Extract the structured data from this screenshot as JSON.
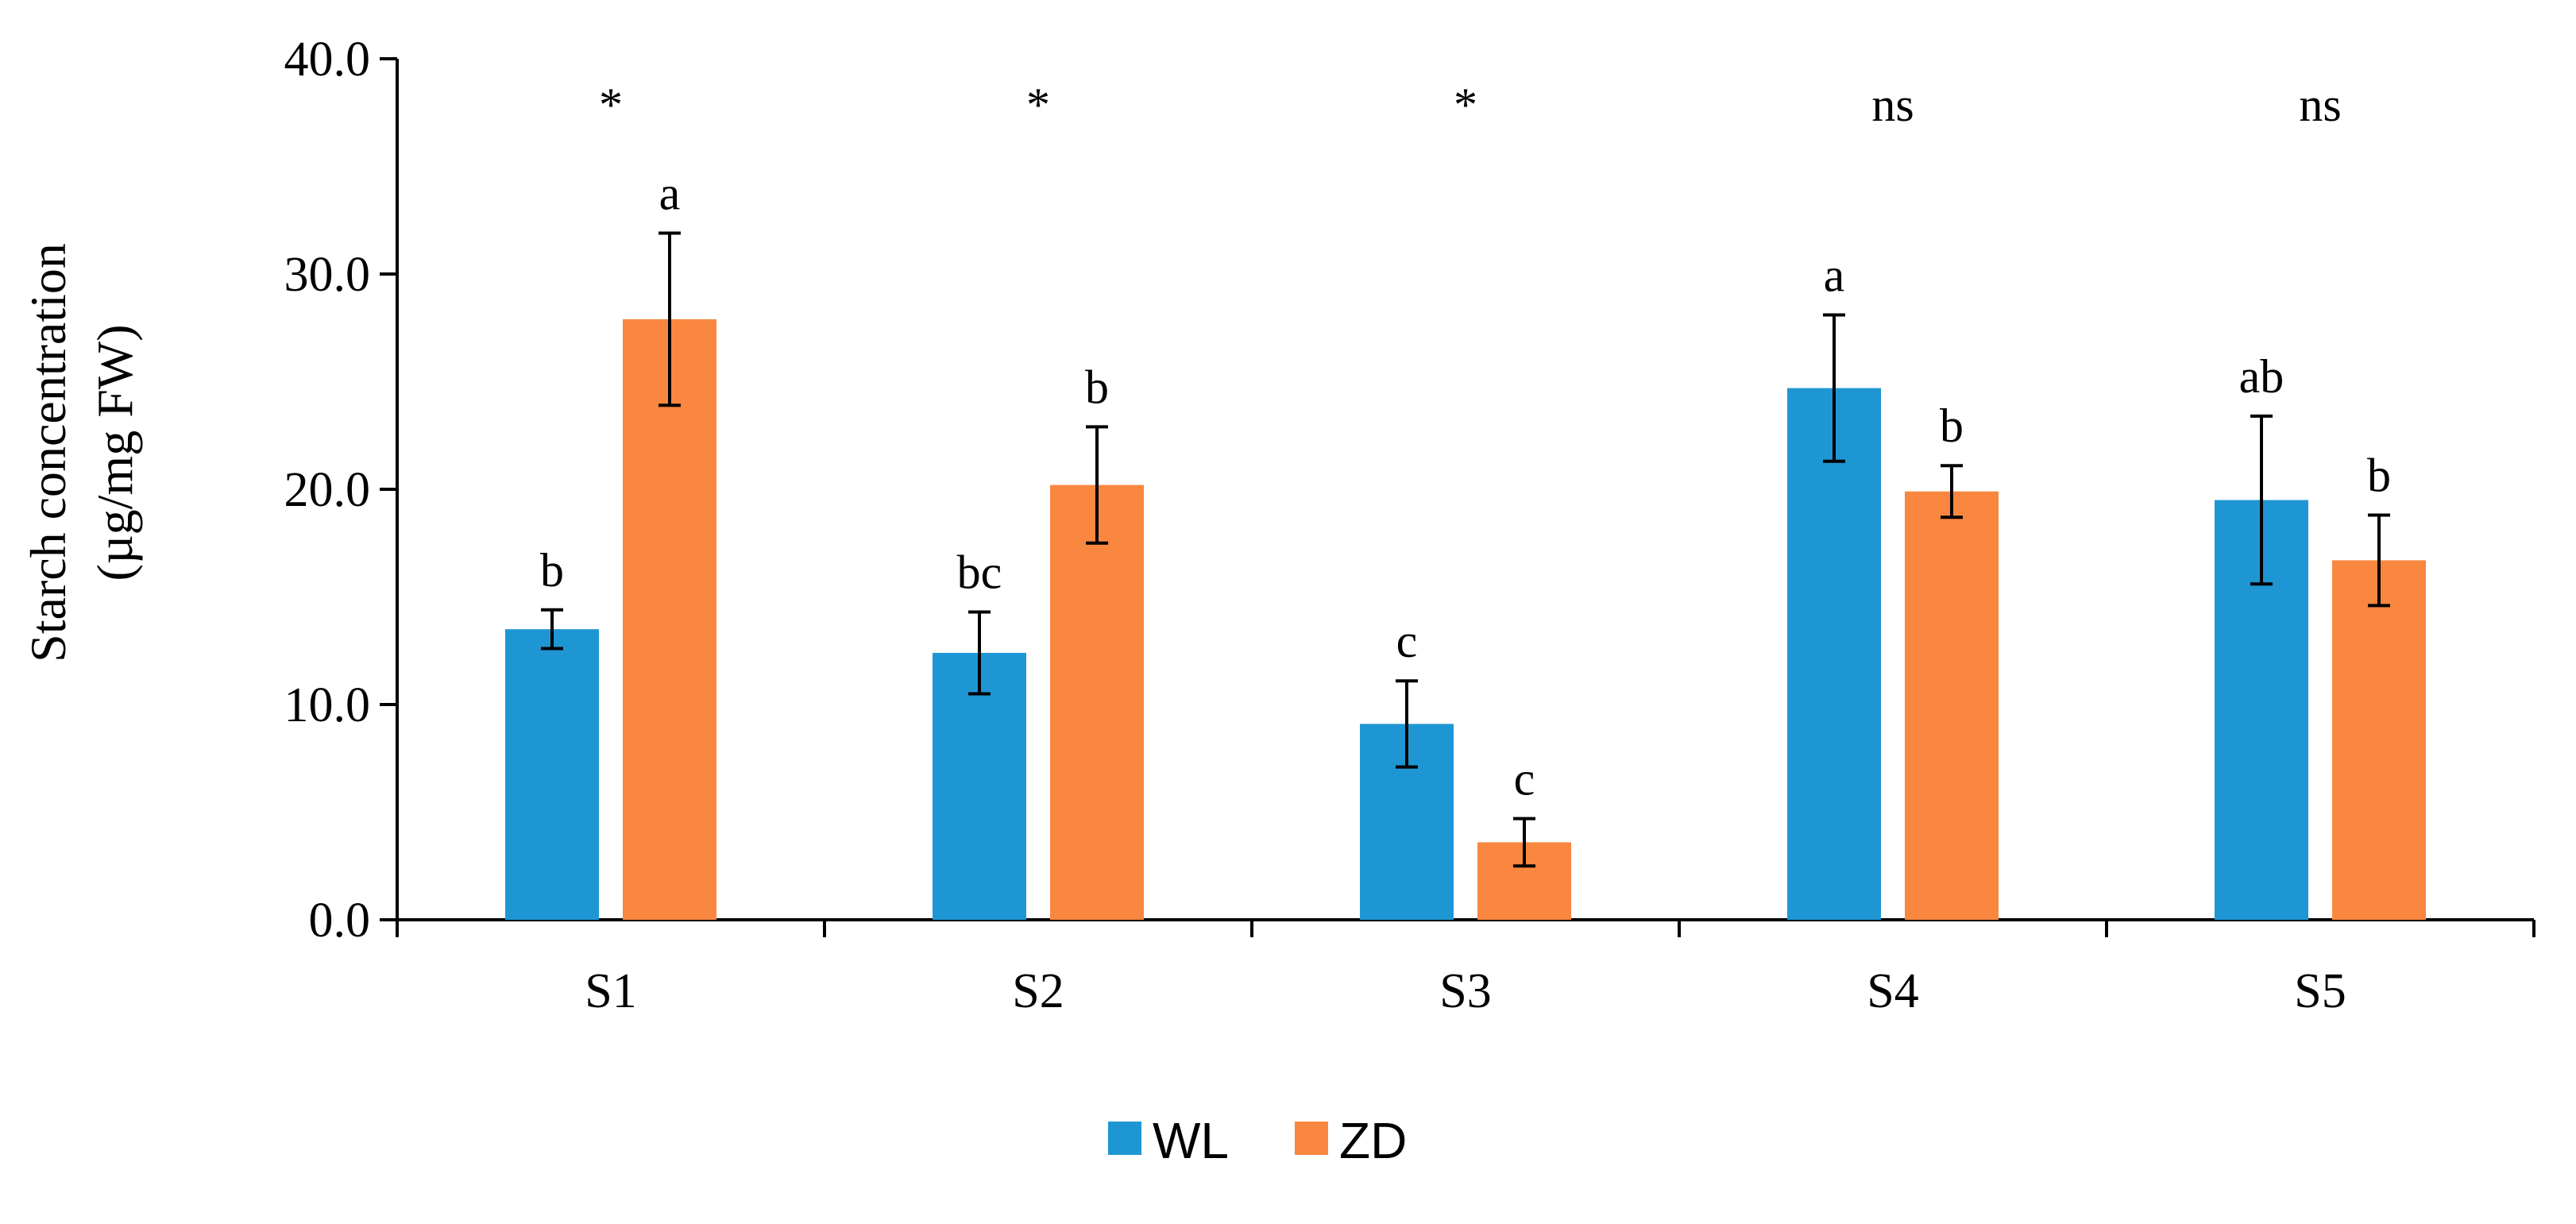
{
  "chart_data": {
    "type": "bar",
    "title": "",
    "xlabel": "",
    "ylabel_lines": [
      "Starch concentration",
      "(µg/mg FW)"
    ],
    "ylim": [
      0,
      40
    ],
    "yticks": [
      0,
      10,
      20,
      30,
      40
    ],
    "ytick_labels": [
      "0.0",
      "10.0",
      "20.0",
      "30.0",
      "40.0"
    ],
    "categories": [
      "S1",
      "S2",
      "S3",
      "S4",
      "S5"
    ],
    "series": [
      {
        "name": "WL",
        "color": "#1f96d4",
        "values": [
          13.5,
          12.4,
          9.1,
          24.7,
          19.5
        ],
        "errors": [
          0.9,
          1.9,
          2.0,
          3.4,
          3.9
        ],
        "letters": [
          "b",
          "bc",
          "c",
          "a",
          "ab"
        ]
      },
      {
        "name": "ZD",
        "color": "#f98740",
        "values": [
          27.9,
          20.2,
          3.6,
          19.9,
          16.7
        ],
        "errors": [
          4.0,
          2.7,
          1.1,
          1.2,
          2.1
        ],
        "letters": [
          "a",
          "b",
          "c",
          "b",
          "b"
        ]
      }
    ],
    "significance": [
      "*",
      "*",
      "*",
      "ns",
      "ns"
    ],
    "legend_position": "bottom"
  }
}
